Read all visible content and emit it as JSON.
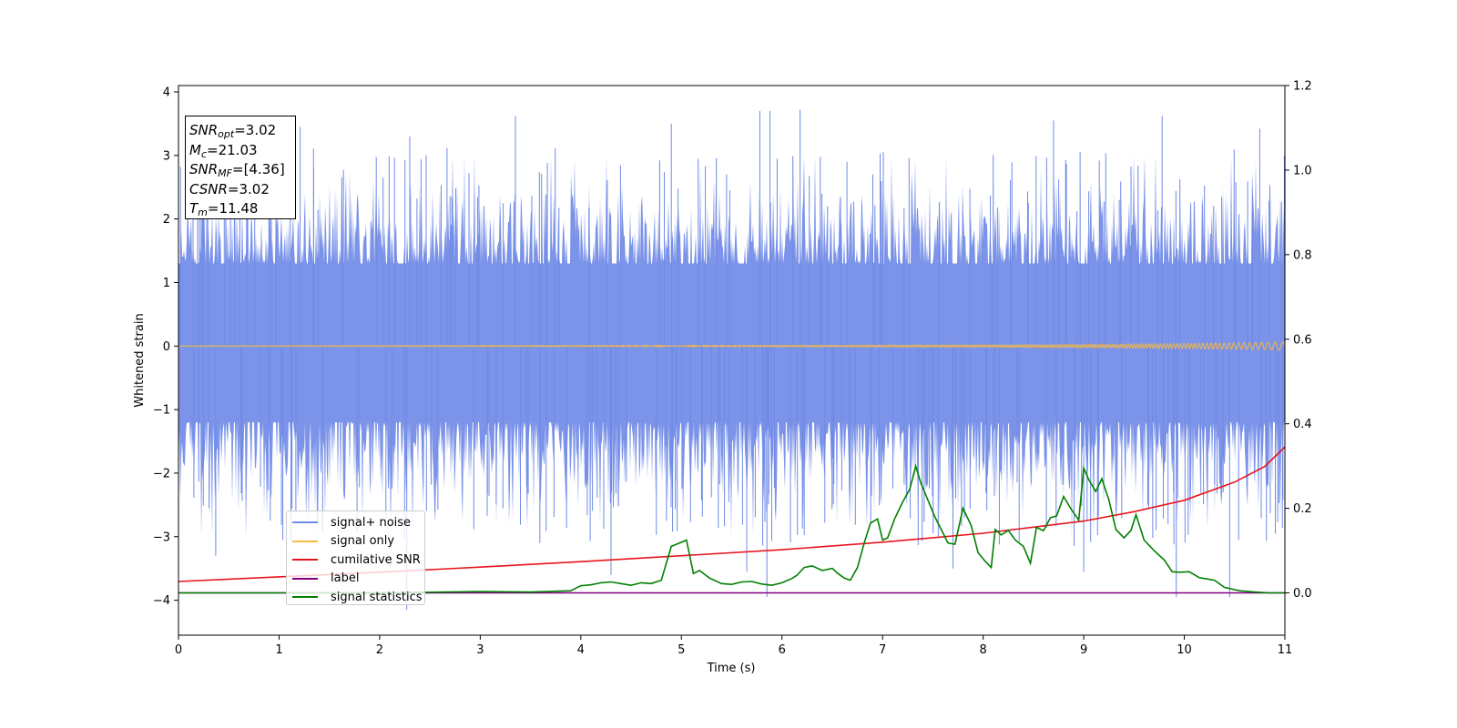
{
  "chart_data": {
    "type": "line",
    "xlabel": "Time (s)",
    "ylabel": "Whitened strain",
    "xlim": [
      0,
      11
    ],
    "ylim": [
      -4.55,
      4.1
    ],
    "y2lim": [
      -0.1,
      1.2
    ],
    "grid": false,
    "legend_placement": "lower-left",
    "x_ticks": [
      "0",
      "1",
      "2",
      "3",
      "4",
      "5",
      "6",
      "7",
      "8",
      "9",
      "10",
      "11"
    ],
    "y_ticks": [
      "−4",
      "−3",
      "−2",
      "−1",
      "0",
      "1",
      "2",
      "3",
      "4"
    ],
    "y2_ticks": [
      "0.0",
      "0.2",
      "0.4",
      "0.6",
      "0.8",
      "1.0",
      "1.2"
    ],
    "annotation": {
      "snr_opt": "3.02",
      "mc": "21.03",
      "snr_mf": "[4.36]",
      "csnr": "3.02",
      "tm": "11.48"
    },
    "series": [
      {
        "name": "signal+ noise",
        "color": "#6f8ae6",
        "axis": "left",
        "description": "whitened noise, sd ~1, peaks ~±3.7",
        "spikes_pos": [
          [
            1.21,
            3.45
          ],
          [
            2.3,
            3.3
          ],
          [
            3.35,
            3.62
          ],
          [
            4.9,
            3.5
          ],
          [
            5.78,
            3.7
          ],
          [
            5.88,
            3.7
          ],
          [
            6.18,
            3.72
          ],
          [
            8.7,
            3.55
          ],
          [
            9.78,
            3.62
          ],
          [
            10.75,
            3.42
          ]
        ],
        "spikes_neg": [
          [
            0.37,
            -3.3
          ],
          [
            2.27,
            -4.15
          ],
          [
            4.3,
            -3.6
          ],
          [
            5.65,
            -3.55
          ],
          [
            5.85,
            -3.95
          ],
          [
            7.7,
            -3.5
          ],
          [
            9.0,
            -3.55
          ],
          [
            9.92,
            -3.95
          ],
          [
            10.45,
            -3.95
          ]
        ]
      },
      {
        "name": "signal only",
        "color": "#f5b945",
        "axis": "left",
        "description": "chirp near 0, amplitude grows to ~0.06 at 11 s"
      },
      {
        "name": "cumilative SNR",
        "color": "#e8141e",
        "axis": "right",
        "x": [
          0,
          1,
          2,
          3,
          4,
          5,
          6,
          7,
          8,
          9,
          9.5,
          10,
          10.5,
          10.8,
          11
        ],
        "y": [
          0.027,
          0.038,
          0.049,
          0.061,
          0.074,
          0.088,
          0.102,
          0.12,
          0.141,
          0.17,
          0.192,
          0.219,
          0.262,
          0.299,
          0.345
        ]
      },
      {
        "name": "label",
        "color": "#800080",
        "axis": "right",
        "x": [
          0,
          11
        ],
        "y": [
          0.0,
          0.0
        ]
      },
      {
        "name": "signal statistics",
        "color": "#008000",
        "axis": "right",
        "x": [
          0,
          1,
          2,
          3,
          3.5,
          3.9,
          4.0,
          4.1,
          4.2,
          4.3,
          4.4,
          4.5,
          4.6,
          4.7,
          4.8,
          4.9,
          4.95,
          5.05,
          5.12,
          5.18,
          5.28,
          5.4,
          5.5,
          5.6,
          5.7,
          5.8,
          5.9,
          6.0,
          6.1,
          6.15,
          6.22,
          6.3,
          6.4,
          6.5,
          6.55,
          6.62,
          6.68,
          6.75,
          6.82,
          6.88,
          6.95,
          7.0,
          7.05,
          7.12,
          7.2,
          7.27,
          7.33,
          7.38,
          7.45,
          7.52,
          7.6,
          7.65,
          7.72,
          7.8,
          7.88,
          7.95,
          8.02,
          8.08,
          8.12,
          8.18,
          8.25,
          8.32,
          8.4,
          8.47,
          8.53,
          8.6,
          8.67,
          8.73,
          8.8,
          8.87,
          8.95,
          9.0,
          9.05,
          9.12,
          9.18,
          9.25,
          9.32,
          9.4,
          9.47,
          9.52,
          9.6,
          9.7,
          9.8,
          9.88,
          9.95,
          10.05,
          10.15,
          10.3,
          10.4,
          10.55,
          10.7,
          10.85,
          11.0
        ],
        "y": [
          0.0,
          0.0,
          0.0,
          0.003,
          0.002,
          0.005,
          0.017,
          0.019,
          0.024,
          0.026,
          0.022,
          0.018,
          0.024,
          0.022,
          0.03,
          0.11,
          0.115,
          0.125,
          0.046,
          0.053,
          0.035,
          0.022,
          0.02,
          0.026,
          0.027,
          0.021,
          0.018,
          0.024,
          0.034,
          0.042,
          0.06,
          0.064,
          0.053,
          0.058,
          0.047,
          0.035,
          0.03,
          0.06,
          0.12,
          0.165,
          0.175,
          0.125,
          0.13,
          0.175,
          0.215,
          0.245,
          0.3,
          0.26,
          0.22,
          0.18,
          0.142,
          0.118,
          0.115,
          0.2,
          0.16,
          0.095,
          0.075,
          0.06,
          0.15,
          0.137,
          0.148,
          0.125,
          0.11,
          0.07,
          0.155,
          0.147,
          0.178,
          0.182,
          0.228,
          0.2,
          0.172,
          0.295,
          0.268,
          0.24,
          0.27,
          0.22,
          0.15,
          0.13,
          0.148,
          0.185,
          0.125,
          0.1,
          0.078,
          0.05,
          0.049,
          0.05,
          0.036,
          0.03,
          0.013,
          0.005,
          0.002,
          0.0,
          0.0
        ]
      }
    ]
  }
}
